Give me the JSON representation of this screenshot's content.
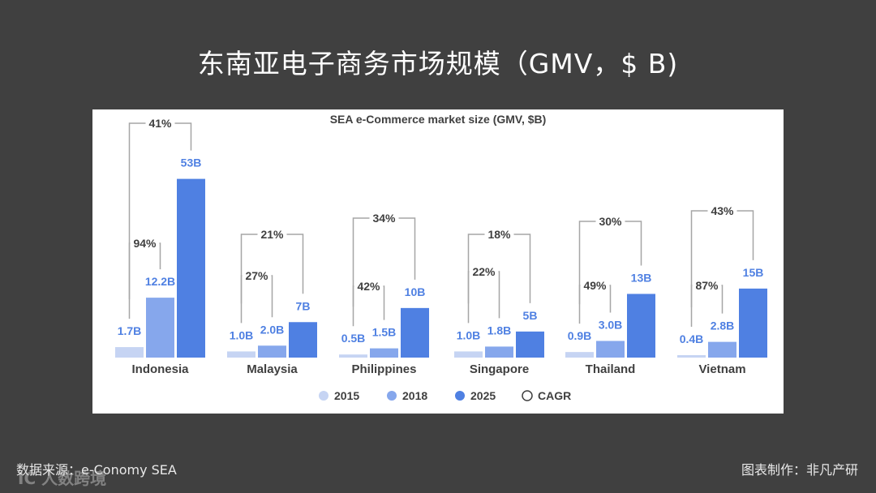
{
  "slide": {
    "title": "东南亚电子商务市场规模（GMV，$ B)",
    "source": "数据来源：e-Conomy SEA",
    "credit": "图表制作：非凡产研",
    "watermark": "IC  人数跨境"
  },
  "colors": {
    "2015": "#c6d4f3",
    "2018": "#86a7ec",
    "2025": "#4f80e2",
    "label": "#4f80e2",
    "bracket": "#a6a6a6",
    "text": "#404040"
  },
  "chart_data": {
    "type": "bar",
    "title": "SEA e-Commerce market size (GMV, $B)",
    "categories": [
      "Indonesia",
      "Malaysia",
      "Philippines",
      "Singapore",
      "Thailand",
      "Vietnam"
    ],
    "series": [
      {
        "name": "2015",
        "values": [
          1.7,
          1.0,
          0.5,
          1.0,
          0.9,
          0.4
        ],
        "labels": [
          "1.7B",
          "1.0B",
          "0.5B",
          "1.0B",
          "0.9B",
          "0.4B"
        ]
      },
      {
        "name": "2018",
        "values": [
          12.2,
          2.0,
          1.5,
          1.8,
          3.0,
          2.8
        ],
        "labels": [
          "12.2B",
          "2.0B",
          "1.5B",
          "1.8B",
          "3.0B",
          "2.8B"
        ]
      },
      {
        "name": "2025",
        "values": [
          53,
          7,
          10,
          5,
          13,
          15
        ],
        "labels": [
          "53B",
          "7B",
          "10B",
          "5B",
          "13B",
          "15B"
        ]
      }
    ],
    "cagr_2015_2018": [
      "94%",
      "27%",
      "42%",
      "22%",
      "49%",
      "87%"
    ],
    "cagr_2015_2025": [
      "41%",
      "21%",
      "34%",
      "18%",
      "30%",
      "43%"
    ],
    "legend": [
      "2015",
      "2018",
      "2025",
      "CAGR"
    ],
    "legend_position": "bottom"
  }
}
